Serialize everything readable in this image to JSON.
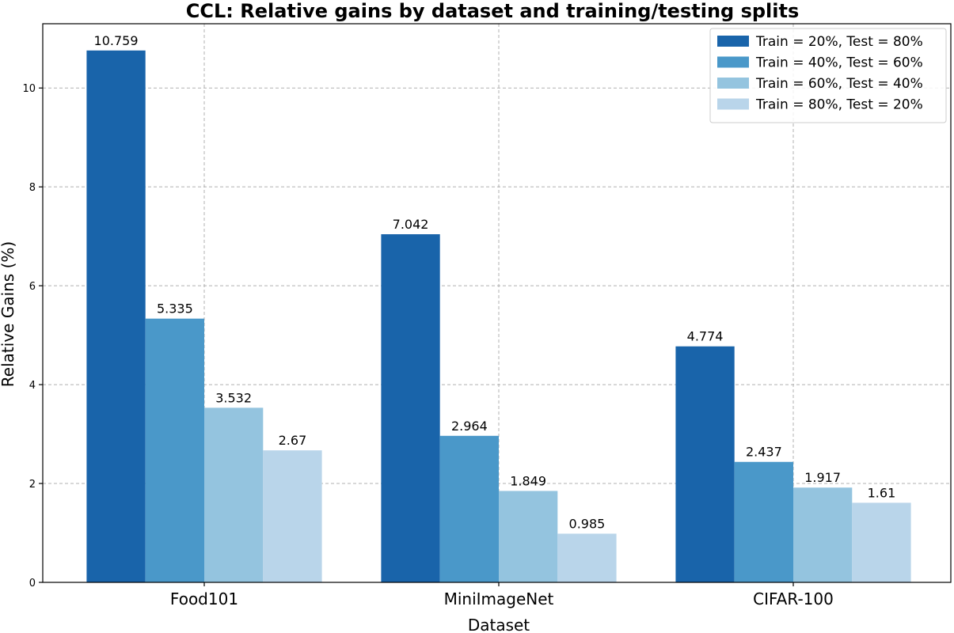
{
  "chart_data": {
    "type": "bar",
    "title": "CCL: Relative gains by dataset and training/testing splits",
    "xlabel": "Dataset",
    "ylabel": "Relative Gains (%)",
    "categories": [
      "Food101",
      "MiniImageNet",
      "CIFAR-100"
    ],
    "ylim": [
      0,
      11.3
    ],
    "yticks": [
      0,
      2,
      4,
      6,
      8,
      10
    ],
    "grid": true,
    "legend_position": "top-right",
    "series": [
      {
        "name": "Train = 20%, Test = 80%",
        "values": [
          10.759,
          7.042,
          4.774
        ],
        "labels": [
          "10.759",
          "7.042",
          "4.774"
        ],
        "color": "#1964aa"
      },
      {
        "name": "Train = 40%, Test = 60%",
        "values": [
          5.335,
          2.964,
          2.437
        ],
        "labels": [
          "5.335",
          "2.964",
          "2.437"
        ],
        "color": "#4a98c9"
      },
      {
        "name": "Train = 60%, Test = 40%",
        "values": [
          3.532,
          1.849,
          1.917
        ],
        "labels": [
          "3.532",
          "1.849",
          "1.917"
        ],
        "color": "#94c4df"
      },
      {
        "name": "Train = 80%, Test = 20%",
        "values": [
          2.67,
          0.985,
          1.61
        ],
        "labels": [
          "2.67",
          "0.985",
          "1.61"
        ],
        "color": "#b9d5ea"
      }
    ]
  }
}
